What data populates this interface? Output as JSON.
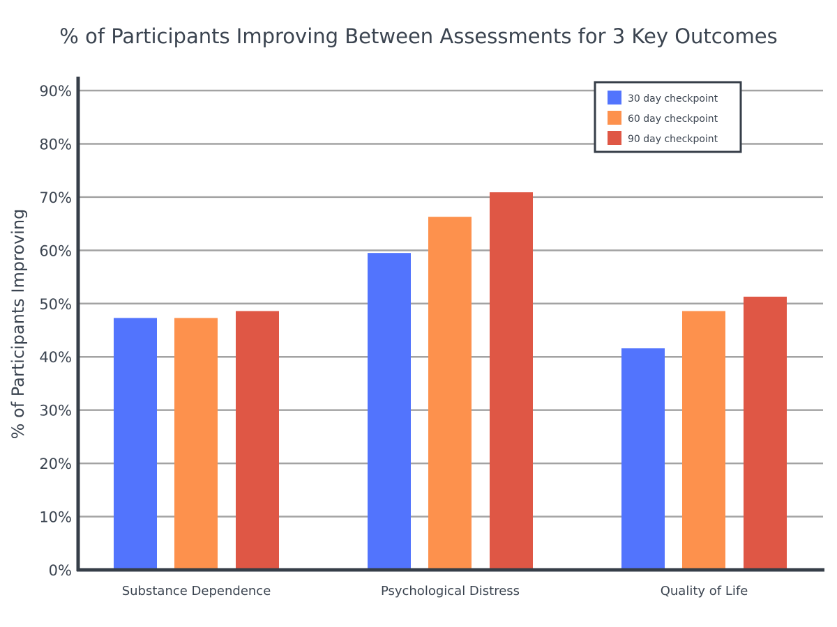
{
  "chart_data": {
    "type": "bar",
    "title": "% of Participants Improving Between Assessments for 3 Key Outcomes",
    "xlabel": "",
    "ylabel": "% of Participants Improving",
    "categories": [
      "Substance Dependence",
      "Psychological Distress",
      "Quality of Life"
    ],
    "series": [
      {
        "name": "30 day checkpoint",
        "values": [
          47.3,
          59.5,
          41.6
        ],
        "color": "#5274fd"
      },
      {
        "name": "60 day checkpoint",
        "values": [
          47.3,
          66.3,
          48.6
        ],
        "color": "#fd914d"
      },
      {
        "name": "90 day checkpoint",
        "values": [
          48.6,
          70.9,
          51.3
        ],
        "color": "#df5745"
      }
    ],
    "ylim": [
      0,
      90
    ],
    "yticks": [
      0,
      10,
      20,
      30,
      40,
      50,
      60,
      70,
      80,
      90
    ],
    "ytick_labels": [
      "0%",
      "10%",
      "20%",
      "30%",
      "40%",
      "50%",
      "60%",
      "70%",
      "80%",
      "90%"
    ],
    "grid": true,
    "legend_position": "top-right",
    "axis_color": "#363e48",
    "grid_color": "#a3a3a3"
  }
}
